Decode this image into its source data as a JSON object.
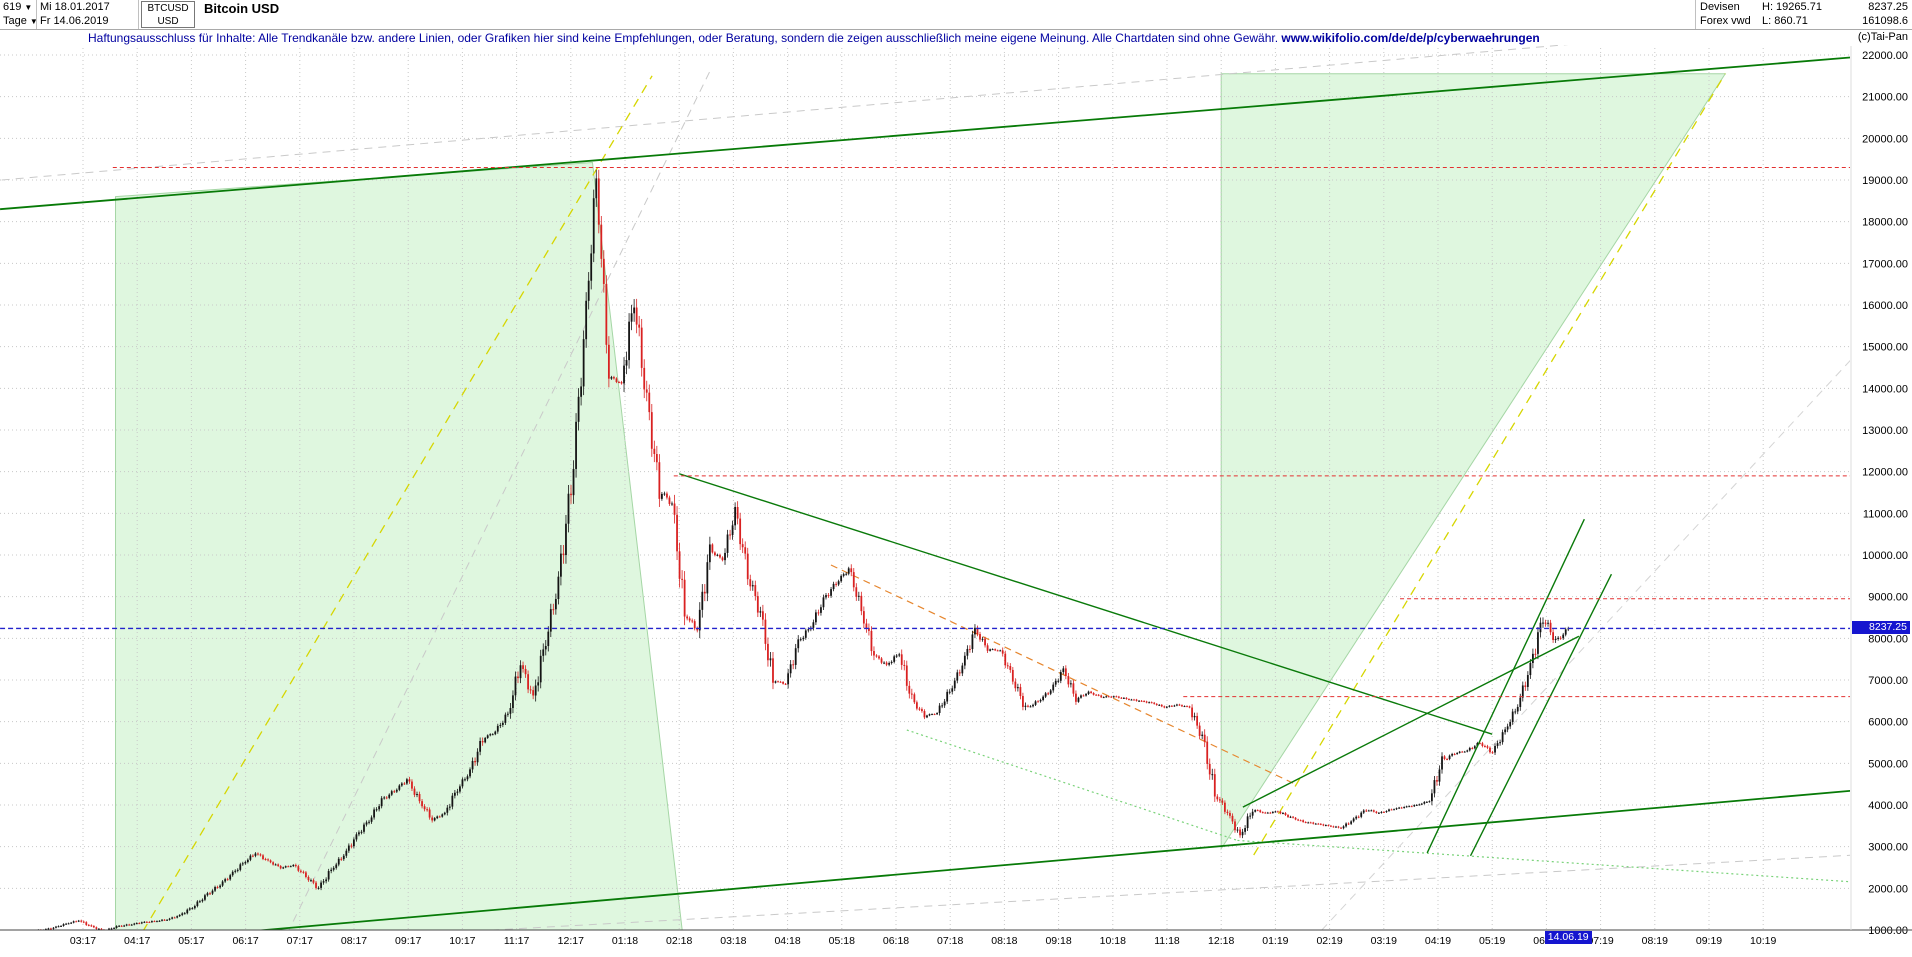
{
  "window": {
    "bars_count": "619",
    "start_date": "Mi 18.01.2017",
    "period": "Tage",
    "end_date": "Fr 14.06.2019",
    "symbol": "BTCUSD",
    "currency": "USD",
    "title": "Bitcoin USD",
    "market": "Devisen",
    "feed": "Forex vwd",
    "high": "H: 19265.71",
    "low": "L: 860.71",
    "last_price": "8237.25",
    "volume": "161098.6",
    "copyright": "(c)Tai-Pan"
  },
  "disclaimer": {
    "text": "Haftungsausschluss für Inhalte: Alle Trendkanäle bzw. andere Linien, oder Grafiken hier sind keine Empfehlungen, oder Beratung, sondern die zeigen ausschließlich meine eigene Meinung. Alle Chartdaten sind ohne Gewähr.",
    "url": "www.wikifolio.com/de/de/p/cyberwaehrungen"
  },
  "axis_markers": {
    "price": "8237.25",
    "date": "14.06.19"
  },
  "chart_data": {
    "type": "candlestick",
    "symbol": "BTCUSD",
    "title": "Bitcoin USD",
    "period": "Tage",
    "range": {
      "first_bar": "Mi 18.01.2017",
      "last_bar": "Fr 14.06.2019",
      "bars": 619,
      "high": 19265.71,
      "low": 860.71,
      "last": 8237.25
    },
    "y_axis": {
      "min": 1000,
      "max": 22000,
      "step": 1000,
      "format": "0.00",
      "side": "right"
    },
    "x_ticks": [
      "03:17",
      "04:17",
      "05:17",
      "06:17",
      "07:17",
      "08:17",
      "09:17",
      "10:17",
      "11:17",
      "12:17",
      "01:18",
      "02:18",
      "03:18",
      "04:18",
      "05:18",
      "06:18",
      "07:18",
      "08:18",
      "09:18",
      "10:18",
      "11:18",
      "12:18",
      "01:19",
      "02:19",
      "03:19",
      "04:19",
      "05:19",
      "06:19",
      "07:19",
      "08:19",
      "09:19",
      "10:19"
    ],
    "grid": true,
    "series": {
      "granularity": "weekly close estimates read off the chart; rendered as interpolated daily candles",
      "start_month_index": -1.43,
      "month_step": 0.2329,
      "closes": [
        900,
        920,
        960,
        1000,
        1050,
        1150,
        1230,
        1080,
        980,
        1080,
        1130,
        1180,
        1210,
        1250,
        1350,
        1550,
        1800,
        2050,
        2300,
        2600,
        2850,
        2650,
        2500,
        2550,
        2300,
        1990,
        2450,
        2800,
        3250,
        3650,
        4100,
        4350,
        4600,
        4100,
        3650,
        3800,
        4400,
        4800,
        5600,
        5750,
        6200,
        7400,
        6550,
        8000,
        9300,
        11700,
        15000,
        19100,
        14300,
        14100,
        16200,
        13600,
        11600,
        11200,
        8600,
        8200,
        10100,
        9900,
        11000,
        9600,
        8550,
        7000,
        6900,
        7900,
        8300,
        8900,
        9350,
        9650,
        8700,
        7600,
        7350,
        7650,
        6500,
        6150,
        6200,
        6750,
        7350,
        8200,
        7750,
        7700,
        7050,
        6300,
        6500,
        6750,
        7250,
        6550,
        6700,
        6600,
        6600,
        6550,
        6500,
        6450,
        6350,
        6400,
        6350,
        5600,
        4300,
        3800,
        3250,
        3900,
        3800,
        3850,
        3700,
        3600,
        3550,
        3500,
        3450,
        3650,
        3900,
        3800,
        3900,
        3950,
        4000,
        4100,
        5050,
        5250,
        5300,
        5500,
        5250,
        5800,
        6400,
        7300,
        8550,
        7900,
        8237.25
      ]
    },
    "overlays": {
      "regions": [
        {
          "name": "rising-channel-2017",
          "points": [
            [
              0.6,
              18600
            ],
            [
              9.4,
              19420
            ],
            [
              11.1,
              500
            ],
            [
              0.6,
              430
            ]
          ]
        },
        {
          "name": "rising-channel-2019",
          "points": [
            [
              21.0,
              21550
            ],
            [
              30.3,
              21550
            ],
            [
              21.0,
              2950
            ]
          ]
        }
      ],
      "lines": [
        {
          "name": "gray-channel-upper",
          "layer": "gray",
          "color": "#c9c9c9",
          "dash": "8,6",
          "width": 1,
          "from": [
            -1.5,
            19000
          ],
          "to": [
            30.5,
            22600
          ]
        },
        {
          "name": "gray-steep-2017",
          "layer": "gray",
          "color": "#c9c9c9",
          "dash": "8,6",
          "width": 1,
          "from": [
            3.65,
            600
          ],
          "to": [
            11.6,
            21700
          ]
        },
        {
          "name": "gray-channel-lower",
          "layer": "gray",
          "color": "#c9c9c9",
          "dash": "8,6",
          "width": 1,
          "from": [
            -1.5,
            350
          ],
          "to": [
            32.7,
            2800
          ]
        },
        {
          "name": "gray-steep-2019",
          "layer": "gray",
          "color": "#d4d4d4",
          "dash": "8,6",
          "width": 1,
          "from": [
            22.5,
            500
          ],
          "to": [
            32.7,
            14800
          ]
        },
        {
          "name": "yellow-trend-2017",
          "layer": "yellow",
          "color": "#d6d600",
          "dash": "9,7",
          "width": 1.3,
          "from": [
            0.8,
            300
          ],
          "to": [
            10.5,
            21500
          ]
        },
        {
          "name": "yellow-trend-2019",
          "layer": "yellow",
          "color": "#d6d600",
          "dash": "9,7",
          "width": 1.3,
          "from": [
            21.6,
            2800
          ],
          "to": [
            30.3,
            21550
          ]
        },
        {
          "name": "ltgreen-dotted-down",
          "layer": "ltgreen",
          "color": "#79d279",
          "dash": "2,3",
          "width": 1.2,
          "from": [
            15.2,
            5800
          ],
          "to": [
            21.3,
            3150
          ]
        },
        {
          "name": "ltgreen-dotted-bottom",
          "layer": "ltgreen",
          "color": "#79d279",
          "dash": "2,3",
          "width": 1.2,
          "from": [
            21.3,
            3150
          ],
          "to": [
            32.7,
            2150
          ]
        },
        {
          "name": "orange-resistance-2018",
          "layer": "orange",
          "color": "#e6862e",
          "dash": "7,5",
          "width": 1.2,
          "from": [
            13.8,
            9760
          ],
          "to": [
            22.4,
            4480
          ]
        },
        {
          "name": "green-upper-channel",
          "layer": "green",
          "color": "#077a07",
          "dash": "",
          "width": 1.8,
          "from": [
            -1.53,
            18300
          ],
          "to": [
            32.7,
            21950
          ]
        },
        {
          "name": "green-lower-support",
          "layer": "green",
          "color": "#077a07",
          "dash": "",
          "width": 1.8,
          "from": [
            0.3,
            650
          ],
          "to": [
            32.7,
            4350
          ]
        },
        {
          "name": "green-downtrend-2018",
          "layer": "green",
          "color": "#0a7a0a",
          "dash": "",
          "width": 1.4,
          "from": [
            11.0,
            11950
          ],
          "to": [
            26.0,
            5700
          ]
        },
        {
          "name": "green-recovery-line",
          "layer": "green",
          "color": "#0a7a0a",
          "dash": "",
          "width": 1.4,
          "from": [
            21.4,
            3950
          ],
          "to": [
            27.6,
            8050
          ]
        },
        {
          "name": "green-steep-up-1",
          "layer": "green",
          "color": "#0a7a0a",
          "dash": "",
          "width": 1.4,
          "from": [
            24.8,
            2850
          ],
          "to": [
            27.7,
            10860
          ]
        },
        {
          "name": "green-steep-up-2",
          "layer": "green",
          "color": "#0a7a0a",
          "dash": "",
          "width": 1.4,
          "from": [
            25.6,
            2780
          ],
          "to": [
            28.2,
            9540
          ]
        },
        {
          "name": "red-resistance-19300",
          "layer": "red",
          "color": "#e33030",
          "dash": "4,3",
          "width": 1,
          "from": [
            0.55,
            19300
          ],
          "to": [
            32.7,
            19300
          ]
        },
        {
          "name": "red-resistance-11900",
          "layer": "red",
          "color": "#e33030",
          "dash": "4,3",
          "width": 1,
          "from": [
            10.9,
            11900
          ],
          "to": [
            32.7,
            11900
          ]
        },
        {
          "name": "red-resistance-8950",
          "layer": "red",
          "color": "#e33030",
          "dash": "4,3",
          "width": 1,
          "from": [
            24.3,
            8950
          ],
          "to": [
            32.7,
            8950
          ]
        },
        {
          "name": "red-support-6600",
          "layer": "red",
          "color": "#e33030",
          "dash": "4,3",
          "width": 1,
          "from": [
            20.3,
            6600
          ],
          "to": [
            32.7,
            6600
          ]
        },
        {
          "name": "last-price-line",
          "layer": "blue",
          "color": "#2323cc",
          "dash": "5,3",
          "width": 1.3,
          "from": [
            -1.53,
            8237.25
          ],
          "to": [
            32.7,
            8237.25
          ]
        }
      ]
    },
    "colors": {
      "up": "#141414",
      "down": "#d92121",
      "grid": "#c8c8c8",
      "region_fill": "rgba(140,225,140,0.28)",
      "region_stroke": "#a5d6a5",
      "axis_text": "#000000",
      "marker_bg": "#1515cf"
    },
    "legend": false
  }
}
